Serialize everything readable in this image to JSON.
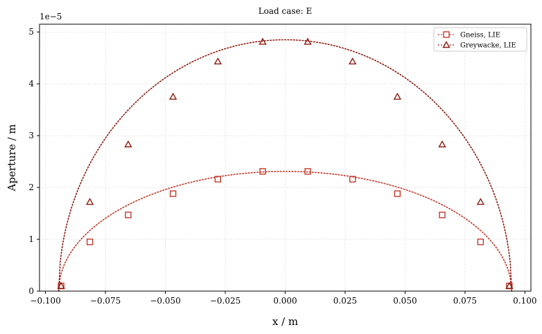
{
  "chart_data": {
    "type": "line",
    "title": "Load case: E",
    "xlabel": "x / m",
    "ylabel": "Aperture / m",
    "y_offset_label": "1e−5",
    "xlim": [
      -0.1025,
      0.1025
    ],
    "ylim": [
      0,
      5.15
    ],
    "x_ticks": [
      -0.1,
      -0.075,
      -0.05,
      -0.025,
      0.0,
      0.025,
      0.05,
      0.075,
      0.1
    ],
    "x_tick_labels": [
      "−0.100",
      "−0.075",
      "−0.050",
      "−0.025",
      "0.000",
      "0.025",
      "0.050",
      "0.075",
      "0.100"
    ],
    "y_ticks": [
      0,
      1,
      2,
      3,
      4,
      5
    ],
    "y_tick_labels": [
      "0",
      "1",
      "2",
      "3",
      "4",
      "5"
    ],
    "y_scale_note": "values in units of 1e-5 m",
    "grid": true,
    "legend_position": "top-right",
    "series": [
      {
        "name": "Gneiss, LIE",
        "marker": "square",
        "color": "#c0392b",
        "x": [
          -0.0935,
          -0.0815,
          -0.0655,
          -0.0468,
          -0.0281,
          -0.0094,
          0.0094,
          0.0281,
          0.0468,
          0.0655,
          0.0815,
          0.0935
        ],
        "y": [
          0.1,
          0.95,
          1.47,
          1.88,
          2.16,
          2.31,
          2.31,
          2.16,
          1.88,
          1.47,
          0.95,
          0.1
        ],
        "curve_peak": 2.31,
        "curve_half_width": 0.0945
      },
      {
        "name": "Greywacke, LIE",
        "marker": "triangle",
        "color": "#8b1a10",
        "x": [
          -0.0935,
          -0.0815,
          -0.0655,
          -0.0468,
          -0.0281,
          -0.0094,
          0.0094,
          0.0281,
          0.0468,
          0.0655,
          0.0815,
          0.0935
        ],
        "y": [
          0.1,
          1.72,
          2.83,
          3.75,
          4.43,
          4.81,
          4.81,
          4.43,
          3.75,
          2.83,
          1.72,
          0.1
        ],
        "curve_peak": 4.85,
        "curve_half_width": 0.0945
      }
    ]
  },
  "colors": {
    "axis": "#000000",
    "grid": "#cccccc",
    "curve_gneiss": "#b03a2e",
    "curve_greywacke": "#8b1a10"
  }
}
